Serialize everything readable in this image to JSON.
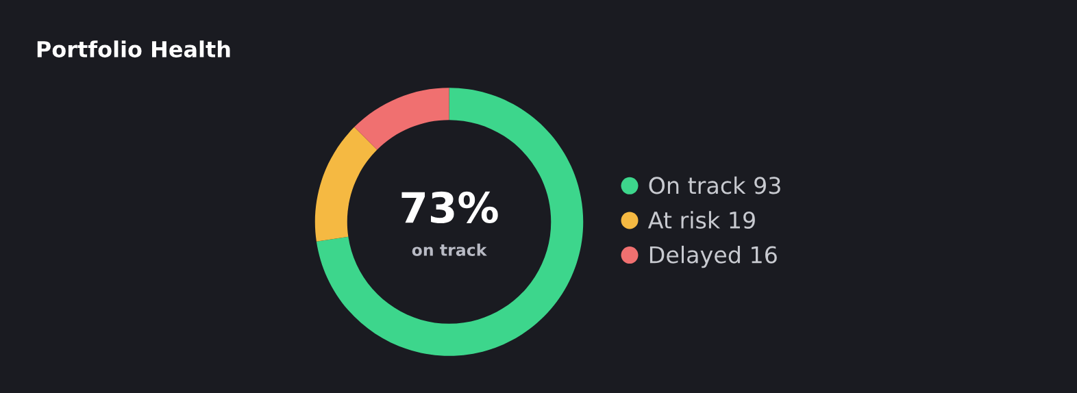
{
  "chart_data": {
    "type": "donut",
    "title": "Portfolio Health",
    "categories": [
      "On track 93",
      "At risk 19",
      "Delayed 16"
    ],
    "values": [
      93,
      19,
      16
    ],
    "colors": [
      "#3dd68c",
      "#f5b942",
      "#f07070"
    ],
    "legend": "right",
    "annotations": [
      "73%",
      "on track"
    ]
  }
}
